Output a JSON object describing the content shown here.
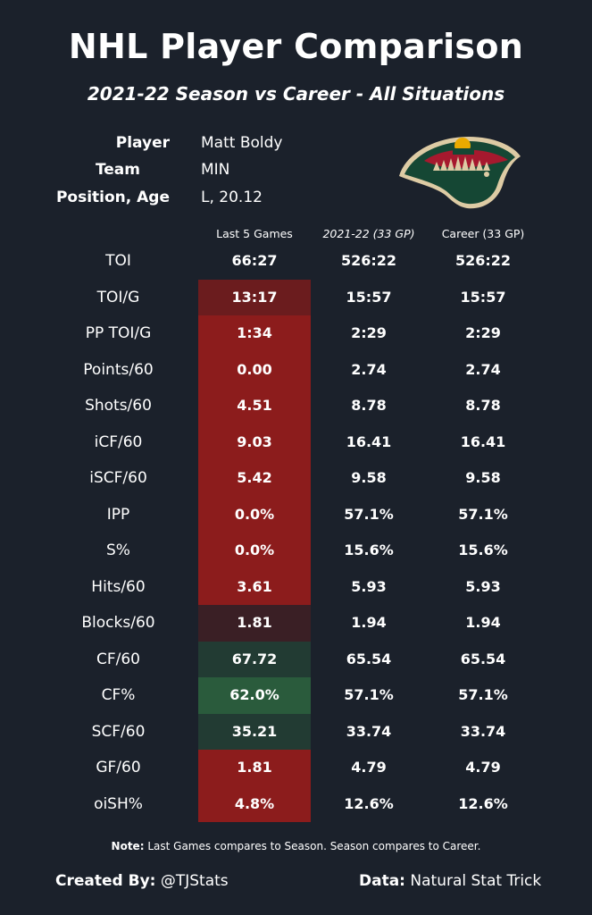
{
  "title": "NHL Player Comparison",
  "subtitle": "2021-22 Season vs Career - All Situations",
  "player_info": {
    "player_label": "Player",
    "player_value": "Matt Boldy",
    "team_label": "Team",
    "team_value": "MIN",
    "position_label": "Position, Age",
    "position_value": "L, 20.12"
  },
  "logo": {
    "name": "minnesota-wild-logo",
    "colors": {
      "green": "#154734",
      "red": "#a6192e",
      "gold": "#ddcba4",
      "wheat": "#eaaa00"
    }
  },
  "columns": [
    "Last 5 Games",
    "2021-22 (33 GP)",
    "Career (33 GP)"
  ],
  "colors": {
    "bg": "#1b212b",
    "strong_red": "#8c1c1c",
    "dark_red": "#6b1c1e",
    "faint_red": "#3a1f25",
    "dark_green": "#223b33",
    "green": "#2a5b3c"
  },
  "chart_data": {
    "type": "table",
    "title": "NHL Player Comparison",
    "columns": [
      "Last 5 Games",
      "2021-22 (33 GP)",
      "Career (33 GP)"
    ],
    "rows": [
      {
        "stat": "TOI",
        "last5": "66:27",
        "season": "526:22",
        "career": "526:22",
        "shade": "none"
      },
      {
        "stat": "TOI/G",
        "last5": "13:17",
        "season": "15:57",
        "career": "15:57",
        "shade": "dark_red"
      },
      {
        "stat": "PP TOI/G",
        "last5": "1:34",
        "season": "2:29",
        "career": "2:29",
        "shade": "strong_red"
      },
      {
        "stat": "Points/60",
        "last5": "0.00",
        "season": "2.74",
        "career": "2.74",
        "shade": "strong_red"
      },
      {
        "stat": "Shots/60",
        "last5": "4.51",
        "season": "8.78",
        "career": "8.78",
        "shade": "strong_red"
      },
      {
        "stat": "iCF/60",
        "last5": "9.03",
        "season": "16.41",
        "career": "16.41",
        "shade": "strong_red"
      },
      {
        "stat": "iSCF/60",
        "last5": "5.42",
        "season": "9.58",
        "career": "9.58",
        "shade": "strong_red"
      },
      {
        "stat": "IPP",
        "last5": "0.0%",
        "season": "57.1%",
        "career": "57.1%",
        "shade": "strong_red"
      },
      {
        "stat": "S%",
        "last5": "0.0%",
        "season": "15.6%",
        "career": "15.6%",
        "shade": "strong_red"
      },
      {
        "stat": "Hits/60",
        "last5": "3.61",
        "season": "5.93",
        "career": "5.93",
        "shade": "strong_red"
      },
      {
        "stat": "Blocks/60",
        "last5": "1.81",
        "season": "1.94",
        "career": "1.94",
        "shade": "faint_red"
      },
      {
        "stat": "CF/60",
        "last5": "67.72",
        "season": "65.54",
        "career": "65.54",
        "shade": "dark_green"
      },
      {
        "stat": "CF%",
        "last5": "62.0%",
        "season": "57.1%",
        "career": "57.1%",
        "shade": "green"
      },
      {
        "stat": "SCF/60",
        "last5": "35.21",
        "season": "33.74",
        "career": "33.74",
        "shade": "dark_green"
      },
      {
        "stat": "GF/60",
        "last5": "1.81",
        "season": "4.79",
        "career": "4.79",
        "shade": "strong_red"
      },
      {
        "stat": "oiSH%",
        "last5": "4.8%",
        "season": "12.6%",
        "career": "12.6%",
        "shade": "strong_red"
      }
    ]
  },
  "note": {
    "label": "Note:",
    "text": "Last Games compares to Season. Season compares to Career."
  },
  "footer": {
    "created_label": "Created By:",
    "created_value": "@TJStats",
    "data_label": "Data:",
    "data_value": "Natural Stat Trick"
  }
}
